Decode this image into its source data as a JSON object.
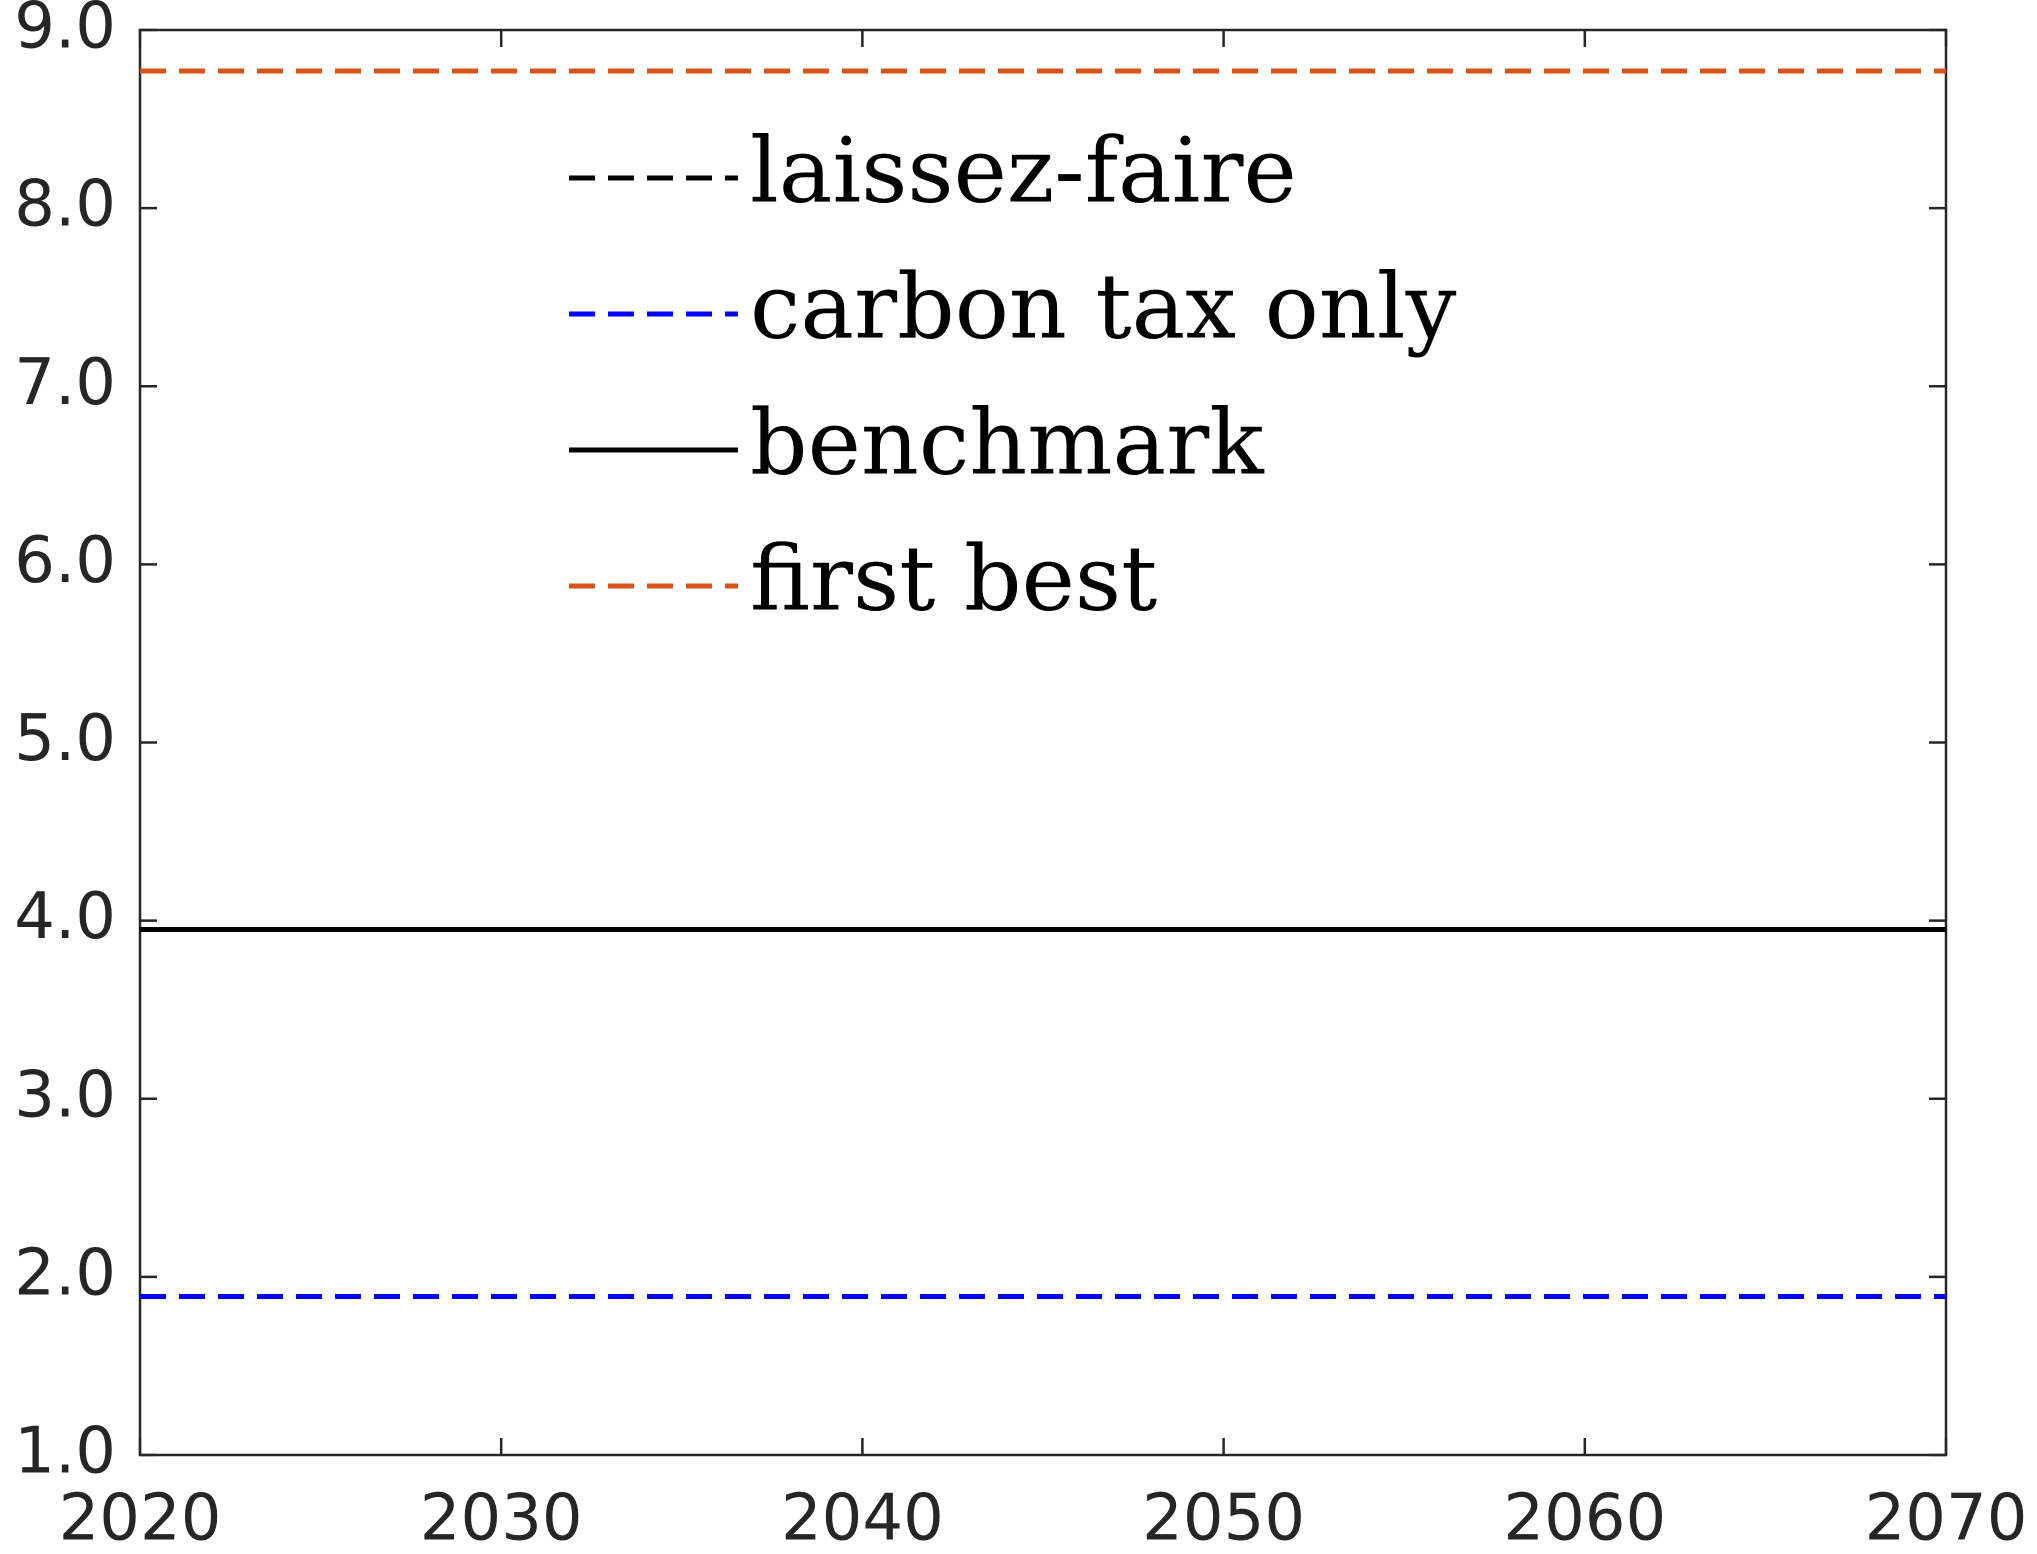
{
  "chart_data": {
    "type": "line",
    "x": [
      2020,
      2070
    ],
    "series": [
      {
        "name": "laissez-faire",
        "color": "#000000",
        "dash": true,
        "values": [
          null,
          null
        ]
      },
      {
        "name": "carbon tax only",
        "color": "#0000ff",
        "dash": true,
        "values": [
          1.89,
          1.89
        ]
      },
      {
        "name": "benchmark",
        "color": "#000000",
        "dash": false,
        "values": [
          3.95,
          3.95
        ]
      },
      {
        "name": "first best",
        "color": "#d95319",
        "dash": true,
        "values": [
          8.77,
          8.77
        ]
      }
    ],
    "xlim": [
      2020,
      2070
    ],
    "xticks": [
      2020,
      2030,
      2040,
      2050,
      2060,
      2070
    ],
    "ylim": [
      1,
      9
    ],
    "yticks": [
      {
        "value": 1,
        "label": "1.0"
      },
      {
        "value": 2,
        "label": "2.0"
      },
      {
        "value": 3,
        "label": "3.0"
      },
      {
        "value": 4,
        "label": "4.0"
      },
      {
        "value": 5,
        "label": "5.0"
      },
      {
        "value": 6,
        "label": "6.0"
      },
      {
        "value": 7,
        "label": "7.0"
      },
      {
        "value": 8,
        "label": "8.0"
      },
      {
        "value": 9,
        "label": "9.0"
      }
    ],
    "grid": false,
    "legend": "top"
  }
}
